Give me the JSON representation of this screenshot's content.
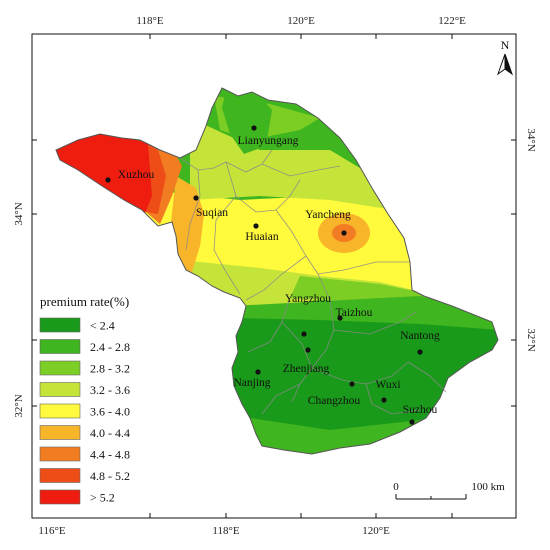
{
  "map": {
    "longitude_ticks": [
      "116°E",
      "118°E",
      "120°E",
      "122°E"
    ],
    "latitude_ticks": [
      "32°N",
      "34°N"
    ],
    "north_label": "N",
    "legend": {
      "title": "premium rate(%)",
      "classes": [
        {
          "label": "< 2.4",
          "color": "#1a9a1a"
        },
        {
          "label": "2.4 - 2.8",
          "color": "#3fb51f"
        },
        {
          "label": "2.8 - 3.2",
          "color": "#7ccd24"
        },
        {
          "label": "3.2 - 3.6",
          "color": "#c4e43a"
        },
        {
          "label": "3.6 - 4.0",
          "color": "#fffa3c"
        },
        {
          "label": "4.0 - 4.4",
          "color": "#f9b52a"
        },
        {
          "label": "4.4 - 4.8",
          "color": "#f27c22"
        },
        {
          "label": "4.8 - 5.2",
          "color": "#ee4d18"
        },
        {
          "label": "> 5.2",
          "color": "#ee1d10"
        }
      ]
    },
    "scale_bar": {
      "start": "0",
      "end": "100 km"
    },
    "cities": [
      "Lianyungang",
      "Xuzhou",
      "Suqian",
      "Huaian",
      "Yancheng",
      "Yangzhou",
      "Taizhou",
      "Nantong",
      "Zhenjiang",
      "Nanjing",
      "Changzhou",
      "Wuxi",
      "Suzhou"
    ]
  }
}
